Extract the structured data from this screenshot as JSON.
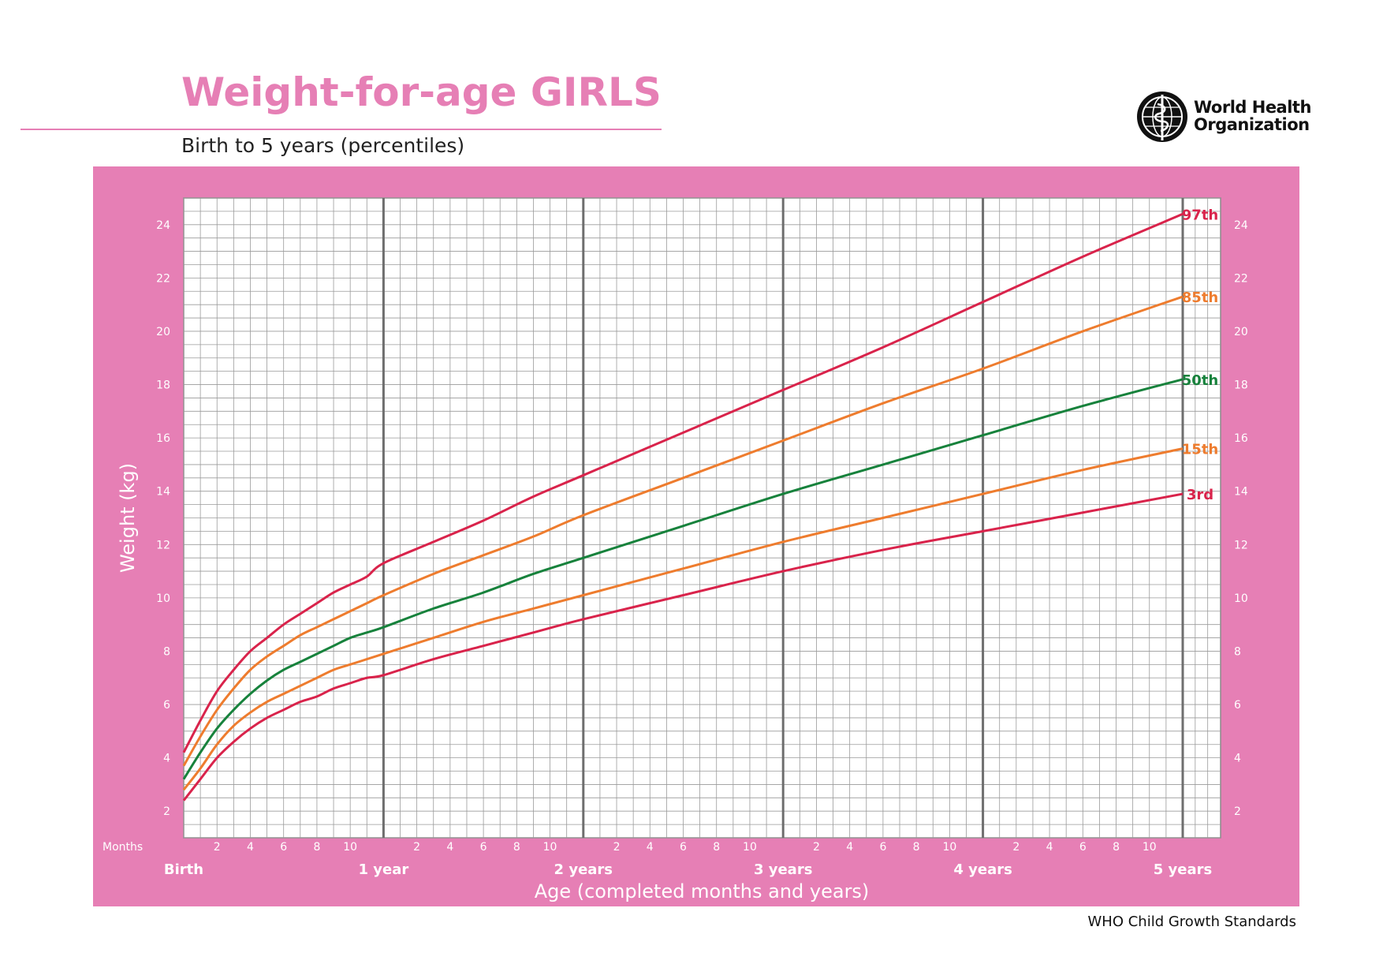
{
  "header": {
    "title": "Weight-for-age GIRLS",
    "subtitle": "Birth to 5 years (percentiles)"
  },
  "logo": {
    "icon": "who-emblem-icon",
    "line1": "World Health",
    "line2": "Organization"
  },
  "footer": {
    "note": "WHO Child Growth Standards"
  },
  "colors": {
    "panel": "#e67fb5",
    "title": "#e67fb5",
    "grid": "#9a9a9a",
    "year_line": "#6e6e6e",
    "p3": "#d9234b",
    "p15": "#ee7c2e",
    "p50": "#17823c",
    "p85": "#ee7c2e",
    "p97": "#d9234b"
  },
  "chart_data": {
    "type": "line",
    "title": "Weight-for-age GIRLS",
    "subtitle": "Birth to 5 years (percentiles)",
    "xlabel": "Age (completed months and years)",
    "ylabel": "Weight (kg)",
    "x_unit_label": "Months",
    "xlim": [
      0,
      60
    ],
    "ylim": [
      1,
      25
    ],
    "grid": true,
    "month_ticks": [
      "2",
      "4",
      "6",
      "8",
      "10"
    ],
    "year_labels": [
      "Birth",
      "1 year",
      "2 years",
      "3 years",
      "4 years",
      "5 years"
    ],
    "y_ticks": [
      2,
      4,
      6,
      8,
      10,
      12,
      14,
      16,
      18,
      20,
      22,
      24
    ],
    "x": [
      0,
      1,
      2,
      3,
      4,
      5,
      6,
      7,
      8,
      9,
      10,
      11,
      12,
      15,
      18,
      21,
      24,
      30,
      36,
      42,
      48,
      54,
      60
    ],
    "series": [
      {
        "name": "3rd",
        "color": "#d9234b",
        "values": [
          2.4,
          3.2,
          4.0,
          4.6,
          5.1,
          5.5,
          5.8,
          6.1,
          6.3,
          6.6,
          6.8,
          7.0,
          7.1,
          7.7,
          8.2,
          8.7,
          9.2,
          10.1,
          11.0,
          11.8,
          12.5,
          13.2,
          13.9
        ]
      },
      {
        "name": "15th",
        "color": "#ee7c2e",
        "values": [
          2.8,
          3.6,
          4.5,
          5.2,
          5.7,
          6.1,
          6.4,
          6.7,
          7.0,
          7.3,
          7.5,
          7.7,
          7.9,
          8.5,
          9.1,
          9.6,
          10.1,
          11.1,
          12.1,
          13.0,
          13.9,
          14.8,
          15.6
        ]
      },
      {
        "name": "50th",
        "color": "#17823c",
        "values": [
          3.2,
          4.2,
          5.1,
          5.8,
          6.4,
          6.9,
          7.3,
          7.6,
          7.9,
          8.2,
          8.5,
          8.7,
          8.9,
          9.6,
          10.2,
          10.9,
          11.5,
          12.7,
          13.9,
          15.0,
          16.1,
          17.2,
          18.2
        ]
      },
      {
        "name": "85th",
        "color": "#ee7c2e",
        "values": [
          3.7,
          4.8,
          5.8,
          6.6,
          7.3,
          7.8,
          8.2,
          8.6,
          8.9,
          9.2,
          9.5,
          9.8,
          10.1,
          10.9,
          11.6,
          12.3,
          13.1,
          14.5,
          15.9,
          17.3,
          18.6,
          20.0,
          21.3
        ]
      },
      {
        "name": "97th",
        "color": "#d9234b",
        "values": [
          4.2,
          5.4,
          6.5,
          7.3,
          8.0,
          8.5,
          9.0,
          9.4,
          9.8,
          10.2,
          10.5,
          10.8,
          11.3,
          12.1,
          12.9,
          13.8,
          14.6,
          16.2,
          17.8,
          19.4,
          21.1,
          22.8,
          24.4
        ]
      }
    ]
  }
}
